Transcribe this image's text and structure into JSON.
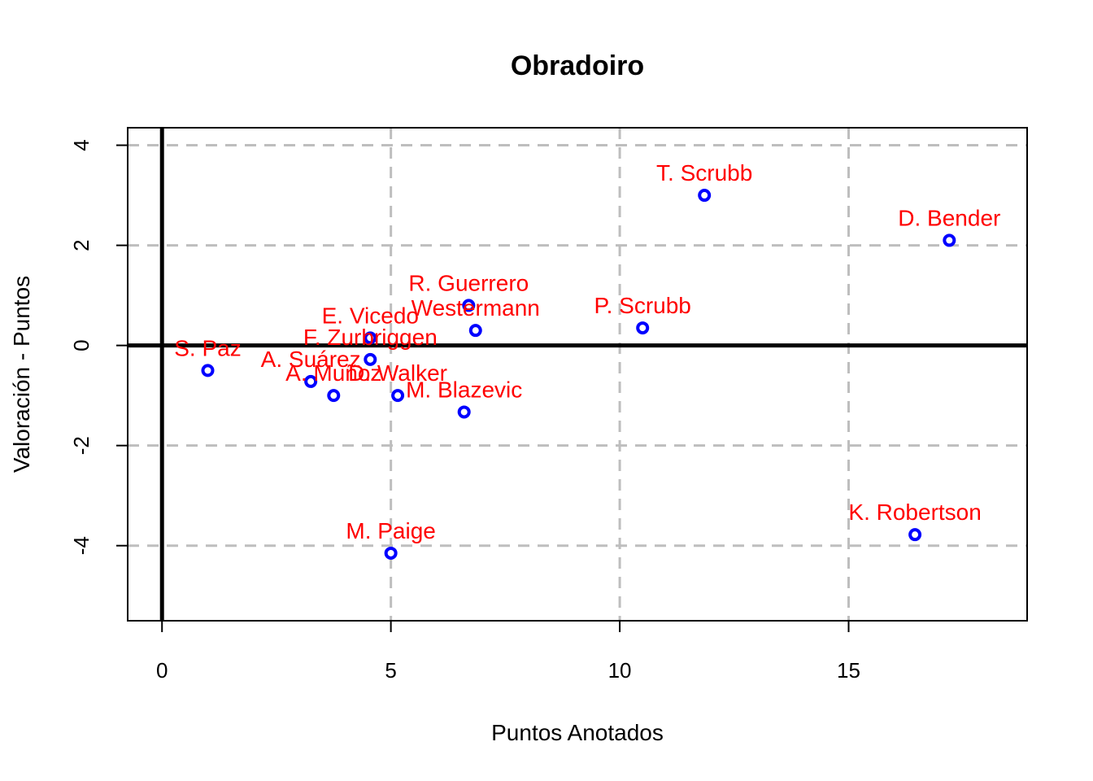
{
  "chart_data": {
    "type": "scatter",
    "title": "Obradoiro",
    "xlabel": "Puntos Anotados",
    "ylabel": "Valoración - Puntos",
    "xlim": [
      -0.75,
      18.9
    ],
    "ylim": [
      -5.5,
      4.35
    ],
    "x_ticks": [
      0,
      5,
      10,
      15
    ],
    "y_ticks": [
      -4,
      -2,
      0,
      2,
      4
    ],
    "grid": true,
    "reference_lines": {
      "x": 0,
      "y": 0
    },
    "point_color": "#0000ff",
    "label_color": "#ff0000",
    "points": [
      {
        "label": "S. Paz",
        "x": 1.0,
        "y": -0.5
      },
      {
        "label": "A. Suárez",
        "x": 3.25,
        "y": -0.72
      },
      {
        "label": "A. Muñoz",
        "x": 3.75,
        "y": -1.0
      },
      {
        "label": "D. Walker",
        "x": 5.15,
        "y": -1.0
      },
      {
        "label": "E. Vicedo",
        "x": 4.55,
        "y": 0.15
      },
      {
        "label": "F. Zurbriggen",
        "x": 4.55,
        "y": -0.28
      },
      {
        "label": "R. Guerrero",
        "x": 6.7,
        "y": 0.8
      },
      {
        "label": "Westermann",
        "x": 6.85,
        "y": 0.3
      },
      {
        "label": "M. Blazevic",
        "x": 6.6,
        "y": -1.33
      },
      {
        "label": "P. Scrubb",
        "x": 10.5,
        "y": 0.35
      },
      {
        "label": "T. Scrubb",
        "x": 11.85,
        "y": 3.0
      },
      {
        "label": "D. Bender",
        "x": 17.2,
        "y": 2.1
      },
      {
        "label": "K. Robertson",
        "x": 16.45,
        "y": -3.78
      },
      {
        "label": "M. Paige",
        "x": 5.0,
        "y": -4.15
      }
    ]
  }
}
